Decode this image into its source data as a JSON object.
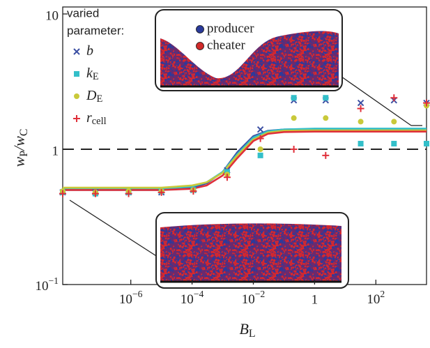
{
  "chart_data": {
    "type": "scatter",
    "x_label": "B_L",
    "y_label": "w_P/w_C",
    "x_log": true,
    "y_log": true,
    "xlim": [
      6e-09,
      4500
    ],
    "ylim": [
      0.1,
      10
    ],
    "xticks": [
      {
        "value": 1e-06,
        "label": "10^−6"
      },
      {
        "value": 0.0001,
        "label": "10^−4"
      },
      {
        "value": 0.01,
        "label": "10^−2"
      },
      1,
      {
        "value": 100,
        "label": "10^2"
      }
    ],
    "yticks": [
      {
        "value": 0.1,
        "label": "10^−1"
      },
      1,
      10
    ],
    "reference_line": 1,
    "legend_title": [
      "varied",
      "parameter:"
    ],
    "x": [
      6e-09,
      7e-08,
      8.5e-07,
      1e-05,
      0.00011,
      0.0014,
      0.017,
      0.21,
      2.3,
      32,
      390,
      4500
    ],
    "series": [
      {
        "name": "b",
        "marker": "x",
        "color": "#3b4fa3",
        "values": [
          0.48,
          0.48,
          0.48,
          0.48,
          0.5,
          0.7,
          1.4,
          2.3,
          2.3,
          2.2,
          2.3,
          2.2
        ]
      },
      {
        "name": "k_E",
        "marker": "square",
        "color": "#33bfc9",
        "values": [
          0.48,
          0.47,
          0.48,
          0.49,
          0.5,
          0.68,
          0.9,
          2.4,
          2.4,
          1.1,
          1.1,
          1.1
        ]
      },
      {
        "name": "D_E",
        "marker": "circle",
        "color": "#c9c93a",
        "values": [
          0.49,
          0.48,
          0.49,
          0.49,
          0.5,
          0.65,
          1.0,
          1.7,
          1.7,
          1.6,
          1.6,
          2.1
        ]
      },
      {
        "name": "r_cell",
        "marker": "plus",
        "color": "#e0303a",
        "values": [
          0.47,
          0.47,
          0.47,
          0.48,
          0.49,
          0.62,
          1.2,
          1.0,
          0.9,
          2.0,
          2.4,
          2.2
        ]
      }
    ],
    "fit_x": [
      6e-09,
      1e-06,
      1e-05,
      0.0001,
      0.0003,
      0.001,
      0.003,
      0.01,
      0.03,
      0.1,
      1,
      10,
      100,
      4500
    ],
    "fits": [
      {
        "color": "#3b4fa3",
        "values": [
          0.5,
          0.5,
          0.5,
          0.52,
          0.56,
          0.68,
          0.95,
          1.25,
          1.37,
          1.4,
          1.41,
          1.41,
          1.41,
          1.41
        ]
      },
      {
        "color": "#33bfc9",
        "values": [
          0.51,
          0.51,
          0.51,
          0.53,
          0.57,
          0.68,
          0.92,
          1.22,
          1.36,
          1.4,
          1.42,
          1.42,
          1.42,
          1.42
        ]
      },
      {
        "color": "#c9c93a",
        "values": [
          0.52,
          0.52,
          0.52,
          0.54,
          0.57,
          0.67,
          0.9,
          1.18,
          1.33,
          1.37,
          1.38,
          1.38,
          1.38,
          1.38
        ]
      },
      {
        "color": "#e0303a",
        "values": [
          0.5,
          0.5,
          0.5,
          0.51,
          0.54,
          0.64,
          0.86,
          1.15,
          1.3,
          1.34,
          1.35,
          1.35,
          1.35,
          1.35
        ]
      }
    ],
    "inset_labels": [
      {
        "text": "producer",
        "color": "#2a3a9a"
      },
      {
        "text": "cheater",
        "color": "#d02a2a"
      }
    ]
  }
}
